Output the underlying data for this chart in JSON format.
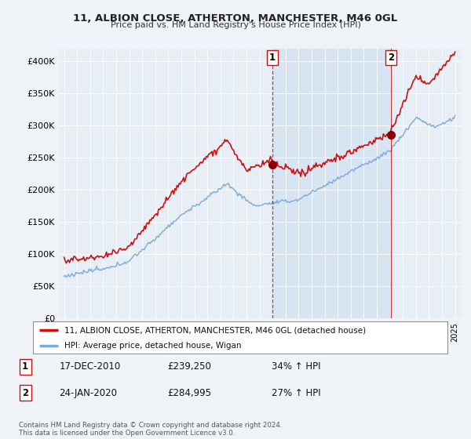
{
  "title": "11, ALBION CLOSE, ATHERTON, MANCHESTER, M46 0GL",
  "subtitle": "Price paid vs. HM Land Registry's House Price Index (HPI)",
  "background_color": "#f0f4f8",
  "plot_bg_color": "#e8eef5",
  "shaded_region_color": "#d0e0f0",
  "ylim": [
    0,
    420000
  ],
  "yticks": [
    0,
    50000,
    100000,
    150000,
    200000,
    250000,
    300000,
    350000,
    400000
  ],
  "ytick_labels": [
    "£0",
    "£50K",
    "£100K",
    "£150K",
    "£200K",
    "£250K",
    "£300K",
    "£350K",
    "£400K"
  ],
  "sale1": {
    "date_num": 2010.96,
    "price": 239250,
    "label": "1"
  },
  "sale2": {
    "date_num": 2020.07,
    "price": 284995,
    "label": "2"
  },
  "legend_entries": [
    "11, ALBION CLOSE, ATHERTON, MANCHESTER, M46 0GL (detached house)",
    "HPI: Average price, detached house, Wigan"
  ],
  "table_rows": [
    [
      "1",
      "17-DEC-2010",
      "£239,250",
      "34% ↑ HPI"
    ],
    [
      "2",
      "24-JAN-2020",
      "£284,995",
      "27% ↑ HPI"
    ]
  ],
  "footer": "Contains HM Land Registry data © Crown copyright and database right 2024.\nThis data is licensed under the Open Government Licence v3.0.",
  "hpi_color": "#7aaadd",
  "sale_color": "#cc1111",
  "marker_color": "#880000",
  "vline1_color": "#cc1111",
  "vline2_color": "#cc1111"
}
